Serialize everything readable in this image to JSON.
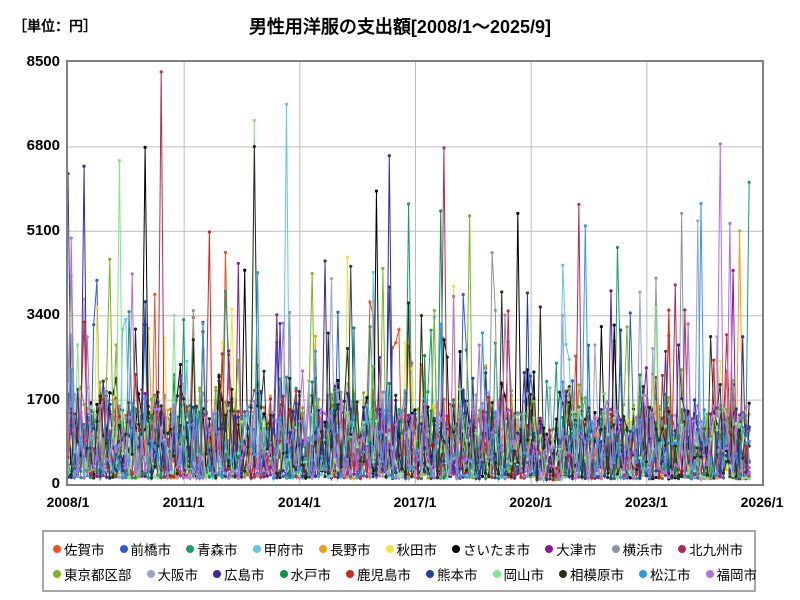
{
  "header": {
    "unit_label": "［単位：円］",
    "title": "男性用洋服の支出額[2008/1～2025/9]"
  },
  "chart_data": {
    "type": "line",
    "title": "男性用洋服の支出額[2008/1～2025/9]",
    "unit": "円",
    "x_start": "2008/1",
    "x_end": "2025/9",
    "axis_total_months": 216,
    "n_points": 213,
    "ylim": [
      0,
      8500
    ],
    "y_ticks": [
      0,
      1700,
      3400,
      5100,
      6800,
      8500
    ],
    "x_ticks": [
      "2008/1",
      "2011/1",
      "2014/1",
      "2017/1",
      "2020/1",
      "2023/1",
      "2026/1"
    ],
    "x_tick_month_index": [
      0,
      36,
      72,
      108,
      144,
      180,
      216
    ],
    "grid": true,
    "legend_position": "bottom",
    "axis_color": "#7f7f7f",
    "grid_color": "#bdbdbd",
    "marker_radius": 1.6,
    "line_width": 1,
    "series": [
      {
        "name": "佐賀市",
        "color": "#f4511c",
        "seed": 101,
        "base": 620,
        "spike_p": 0.05,
        "gap2020": false
      },
      {
        "name": "前橋市",
        "color": "#2a5fcc",
        "seed": 102,
        "base": 600,
        "spike_p": 0.045,
        "gap2020": true
      },
      {
        "name": "青森市",
        "color": "#169b72",
        "seed": 103,
        "base": 640,
        "spike_p": 0.05,
        "gap2020": false
      },
      {
        "name": "甲府市",
        "color": "#63c5ec",
        "seed": 104,
        "base": 600,
        "spike_p": 0.05,
        "gap2020": true
      },
      {
        "name": "長野市",
        "color": "#f39c12",
        "seed": 105,
        "base": 640,
        "spike_p": 0.05,
        "gap2020": false
      },
      {
        "name": "秋田市",
        "color": "#f2e438",
        "seed": 106,
        "base": 620,
        "spike_p": 0.045,
        "gap2020": false
      },
      {
        "name": "さいたま市",
        "color": "#000000",
        "seed": 107,
        "base": 780,
        "spike_p": 0.07,
        "gap2020": false
      },
      {
        "name": "大津市",
        "color": "#8e17a0",
        "seed": 108,
        "base": 680,
        "spike_p": 0.055,
        "gap2020": false
      },
      {
        "name": "横浜市",
        "color": "#8e959e",
        "seed": 109,
        "base": 760,
        "spike_p": 0.06,
        "gap2020": false
      },
      {
        "name": "北九州市",
        "color": "#b02a5c",
        "seed": 110,
        "base": 650,
        "spike_p": 0.05,
        "gap2020": false
      },
      {
        "name": "東京都区部",
        "color": "#7cb520",
        "seed": 111,
        "base": 800,
        "spike_p": 0.065,
        "gap2020": false
      },
      {
        "name": "大阪市",
        "color": "#9aa3cc",
        "seed": 112,
        "base": 720,
        "spike_p": 0.055,
        "gap2020": false
      },
      {
        "name": "広島市",
        "color": "#40269b",
        "seed": 113,
        "base": 660,
        "spike_p": 0.05,
        "gap2020": false
      },
      {
        "name": "水戸市",
        "color": "#109148",
        "seed": 114,
        "base": 640,
        "spike_p": 0.05,
        "gap2020": true
      },
      {
        "name": "鹿児島市",
        "color": "#d3251a",
        "seed": 115,
        "base": 620,
        "spike_p": 0.045,
        "gap2020": false
      },
      {
        "name": "熊本市",
        "color": "#1f3f9b",
        "seed": 116,
        "base": 640,
        "spike_p": 0.05,
        "gap2020": false
      },
      {
        "name": "岡山市",
        "color": "#83e38f",
        "seed": 117,
        "base": 620,
        "spike_p": 0.045,
        "gap2020": false
      },
      {
        "name": "相模原市",
        "color": "#223311",
        "seed": 118,
        "base": 700,
        "spike_p": 0.055,
        "gap2020": false
      },
      {
        "name": "松江市",
        "color": "#2f9be8",
        "seed": 119,
        "base": 640,
        "spike_p": 0.05,
        "gap2020": true
      },
      {
        "name": "福岡市",
        "color": "#b76ce4",
        "seed": 120,
        "base": 700,
        "spike_p": 0.06,
        "gap2020": false
      }
    ],
    "synthesis": {
      "value_floor": 40,
      "value_ceiling": 8400,
      "covid_damp": {
        "start_index": 146,
        "end_index": 153,
        "factor": 0.75
      },
      "gap_range": {
        "start_index": 147,
        "end_index": 152
      },
      "seasonal_boost": {
        "dec": 1.3,
        "jan": 1.15,
        "apr": 1.2,
        "jul": 1.08
      },
      "trend_decline_per_month": 0.0006,
      "forced_points": [
        {
          "series": 9,
          "index": 29,
          "value": 8300
        },
        {
          "series": 3,
          "index": 68,
          "value": 7650
        },
        {
          "series": 6,
          "index": 24,
          "value": 6780
        },
        {
          "series": 6,
          "index": 96,
          "value": 5900
        },
        {
          "series": 6,
          "index": 140,
          "value": 5450
        },
        {
          "series": 15,
          "index": 0,
          "value": 6250
        },
        {
          "series": 12,
          "index": 5,
          "value": 6400
        },
        {
          "series": 10,
          "index": 125,
          "value": 5400
        },
        {
          "series": 18,
          "index": 161,
          "value": 5200
        },
        {
          "series": 18,
          "index": 197,
          "value": 5650
        },
        {
          "series": 19,
          "index": 203,
          "value": 6850
        },
        {
          "series": 19,
          "index": 206,
          "value": 5250
        },
        {
          "series": 8,
          "index": 191,
          "value": 5450
        },
        {
          "series": 11,
          "index": 196,
          "value": 5300
        },
        {
          "series": 4,
          "index": 209,
          "value": 5100
        },
        {
          "series": 13,
          "index": 116,
          "value": 5500
        }
      ]
    }
  },
  "legend": {
    "row_size": 10
  }
}
